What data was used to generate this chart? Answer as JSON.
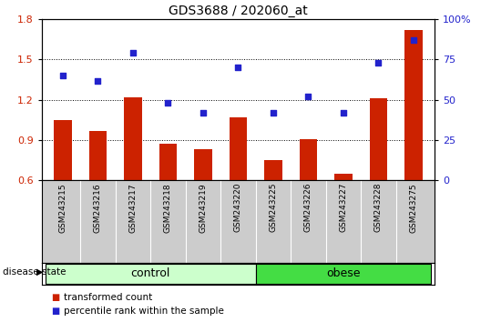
{
  "title": "GDS3688 / 202060_at",
  "samples": [
    "GSM243215",
    "GSM243216",
    "GSM243217",
    "GSM243218",
    "GSM243219",
    "GSM243220",
    "GSM243225",
    "GSM243226",
    "GSM243227",
    "GSM243228",
    "GSM243275"
  ],
  "transformed_count": [
    1.05,
    0.97,
    1.22,
    0.87,
    0.83,
    1.07,
    0.75,
    0.91,
    0.65,
    1.21,
    1.72
  ],
  "percentile_rank": [
    65,
    62,
    79,
    48,
    42,
    70,
    42,
    52,
    42,
    73,
    87
  ],
  "ylim_left": [
    0.6,
    1.8
  ],
  "ylim_right": [
    0,
    100
  ],
  "yticks_left": [
    0.6,
    0.9,
    1.2,
    1.5,
    1.8
  ],
  "yticks_right": [
    0,
    25,
    50,
    75,
    100
  ],
  "ytick_right_labels": [
    "0",
    "25",
    "50",
    "75",
    "100%"
  ],
  "bar_color": "#cc2200",
  "dot_color": "#2222cc",
  "control_indices": [
    0,
    1,
    2,
    3,
    4,
    5
  ],
  "obese_indices": [
    6,
    7,
    8,
    9,
    10
  ],
  "control_label": "control",
  "obese_label": "obese",
  "disease_state_label": "disease state",
  "legend_bar_label": "transformed count",
  "legend_dot_label": "percentile rank within the sample",
  "control_color": "#ccffcc",
  "obese_color": "#44dd44",
  "xticklabel_area_color": "#cccccc",
  "hlines": [
    0.9,
    1.2,
    1.5
  ],
  "bar_width": 0.5
}
